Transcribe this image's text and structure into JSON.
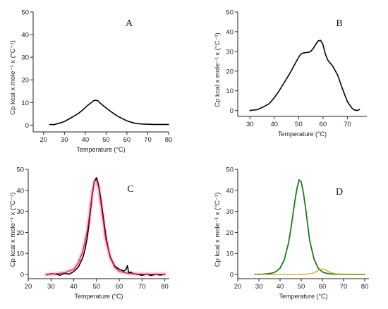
{
  "chart_data": [
    {
      "panel_label": "A",
      "type": "line",
      "xlabel": "Temperature (°C)",
      "ylabel": "Cp kcal x mole⁻¹ x (°C⁻¹)",
      "xlim": [
        15,
        80
      ],
      "ylim": [
        -3,
        50
      ],
      "xticks": [
        20,
        30,
        40,
        50,
        60,
        70,
        80
      ],
      "yticks": [
        0,
        10,
        20,
        30,
        40,
        50
      ],
      "series": [
        {
          "color": "#000000",
          "x": [
            23,
            25,
            28,
            30,
            32,
            35,
            37,
            39,
            41,
            43,
            44,
            45,
            46,
            47,
            48,
            50,
            52,
            54,
            56,
            58,
            60,
            62,
            64,
            67,
            70,
            73,
            76,
            80
          ],
          "y": [
            0.3,
            0.2,
            1.0,
            1.6,
            2.6,
            4.2,
            5.4,
            6.9,
            8.6,
            10.0,
            10.8,
            11.0,
            10.8,
            9.9,
            9.1,
            7.6,
            6.2,
            4.9,
            3.7,
            2.8,
            1.9,
            1.3,
            0.8,
            0.5,
            0.4,
            0.3,
            0.3,
            0.3
          ]
        }
      ]
    },
    {
      "panel_label": "B",
      "type": "line",
      "xlabel": "Temperature (°C)",
      "ylabel": "Cp kcal x mole⁻¹ x (°C⁻¹)",
      "xlim": [
        25,
        78
      ],
      "ylim": [
        -3,
        50
      ],
      "xticks": [
        30,
        40,
        50,
        60,
        70
      ],
      "yticks": [
        0,
        10,
        20,
        30,
        40,
        50
      ],
      "series": [
        {
          "color": "#000000",
          "x": [
            30,
            33,
            35,
            38,
            40,
            42,
            44,
            46,
            48,
            50,
            51,
            52,
            53,
            54,
            55,
            56,
            57,
            58,
            59,
            60,
            61,
            62,
            63,
            64,
            66,
            68,
            70,
            72,
            73,
            74,
            75
          ],
          "y": [
            0,
            0.4,
            1.5,
            3.5,
            6.5,
            10,
            14,
            18,
            22.5,
            27,
            28.8,
            29.2,
            29.4,
            29.5,
            30,
            31.5,
            33.5,
            35.3,
            35.6,
            33.5,
            28.5,
            25.5,
            24,
            22.5,
            18,
            11,
            4.5,
            1,
            0.2,
            0,
            0.5
          ]
        }
      ]
    },
    {
      "panel_label": "C",
      "type": "line",
      "xlabel": "Temperature (°C)",
      "ylabel": "Cp kcal x mole⁻¹ x (°C⁻¹)",
      "xlim": [
        20,
        82
      ],
      "ylim": [
        -2,
        50
      ],
      "xticks": [
        20,
        30,
        40,
        50,
        60,
        70,
        80
      ],
      "yticks": [
        0,
        10,
        20,
        30,
        40,
        50
      ],
      "series": [
        {
          "color": "#ffccee",
          "width": 6,
          "x": [
            28,
            32,
            36,
            40,
            42,
            44,
            46,
            47,
            48,
            49,
            50,
            51,
            52,
            53,
            54,
            56,
            58,
            60,
            64,
            68,
            72,
            76,
            80
          ],
          "y": [
            0,
            0.3,
            0.8,
            2.5,
            5.5,
            11,
            21,
            29,
            38,
            44,
            45,
            41,
            33,
            25,
            17,
            8,
            3.5,
            1.5,
            0.5,
            0.2,
            0.1,
            0.1,
            0.1
          ]
        },
        {
          "color": "#000000",
          "width": 1.6,
          "x": [
            28,
            30,
            32,
            34,
            36,
            38,
            40,
            42,
            44,
            45,
            46,
            47,
            48,
            49,
            50,
            51,
            52,
            53,
            54,
            55,
            56,
            57,
            58,
            60,
            62,
            63,
            63.6,
            64.2,
            65,
            66,
            68,
            70,
            72,
            74,
            76,
            78,
            80
          ],
          "y": [
            -0.2,
            0.3,
            0.2,
            -0.4,
            0.6,
            0.1,
            1.4,
            3.5,
            8,
            12,
            18,
            27,
            37,
            44,
            46,
            42,
            35,
            27,
            19,
            13,
            8.5,
            6,
            4,
            2.5,
            1.6,
            2.5,
            4.2,
            0.4,
            1.2,
            0.4,
            0.1,
            -0.4,
            0.2,
            -0.5,
            0.1,
            -0.3,
            0.1
          ]
        },
        {
          "color": "#d9261c",
          "width": 1.3,
          "x": [
            28,
            32,
            36,
            40,
            42,
            44,
            46,
            47,
            48,
            49,
            50,
            51,
            52,
            53,
            54,
            56,
            58,
            60,
            64,
            68,
            72,
            76,
            80
          ],
          "y": [
            0,
            0.3,
            0.8,
            2.5,
            5.5,
            11,
            21,
            29,
            38,
            44,
            45,
            41,
            33,
            25,
            17,
            8,
            3.5,
            1.5,
            0.5,
            0.2,
            0.1,
            0.1,
            0.1
          ]
        }
      ]
    },
    {
      "panel_label": "D",
      "type": "line",
      "xlabel": "Temperature (°C)",
      "ylabel": "Cp kcal x mole⁻¹ x (°C⁻¹)",
      "xlim": [
        20,
        82
      ],
      "ylim": [
        -2,
        50
      ],
      "xticks": [
        20,
        30,
        40,
        50,
        60,
        70,
        80
      ],
      "yticks": [
        0,
        10,
        20,
        30,
        40,
        50
      ],
      "series": [
        {
          "color": "#1f7a1a",
          "width": 1.8,
          "x": [
            28,
            32,
            36,
            38,
            40,
            42,
            44,
            45,
            46,
            47,
            48,
            49,
            50,
            51,
            52,
            53,
            54,
            56,
            58,
            60,
            62,
            64,
            68,
            72,
            76,
            80
          ],
          "y": [
            0,
            0.1,
            0.6,
            1.3,
            3,
            7,
            15,
            21,
            28,
            35,
            41,
            45,
            44,
            39,
            32,
            24,
            16,
            7.5,
            3,
            1.2,
            0.5,
            0.2,
            0.1,
            0,
            0,
            0
          ]
        },
        {
          "color": "#d8a21e",
          "width": 1.3,
          "x": [
            28,
            40,
            48,
            52,
            54,
            56,
            57,
            58,
            59,
            60,
            61,
            62,
            63,
            65,
            67,
            70,
            75,
            80
          ],
          "y": [
            0,
            0,
            0,
            0.1,
            0.3,
            0.8,
            1.3,
            1.9,
            2.4,
            2.6,
            2.4,
            1.9,
            1.3,
            0.6,
            0.2,
            0.05,
            0,
            0
          ]
        }
      ]
    }
  ]
}
